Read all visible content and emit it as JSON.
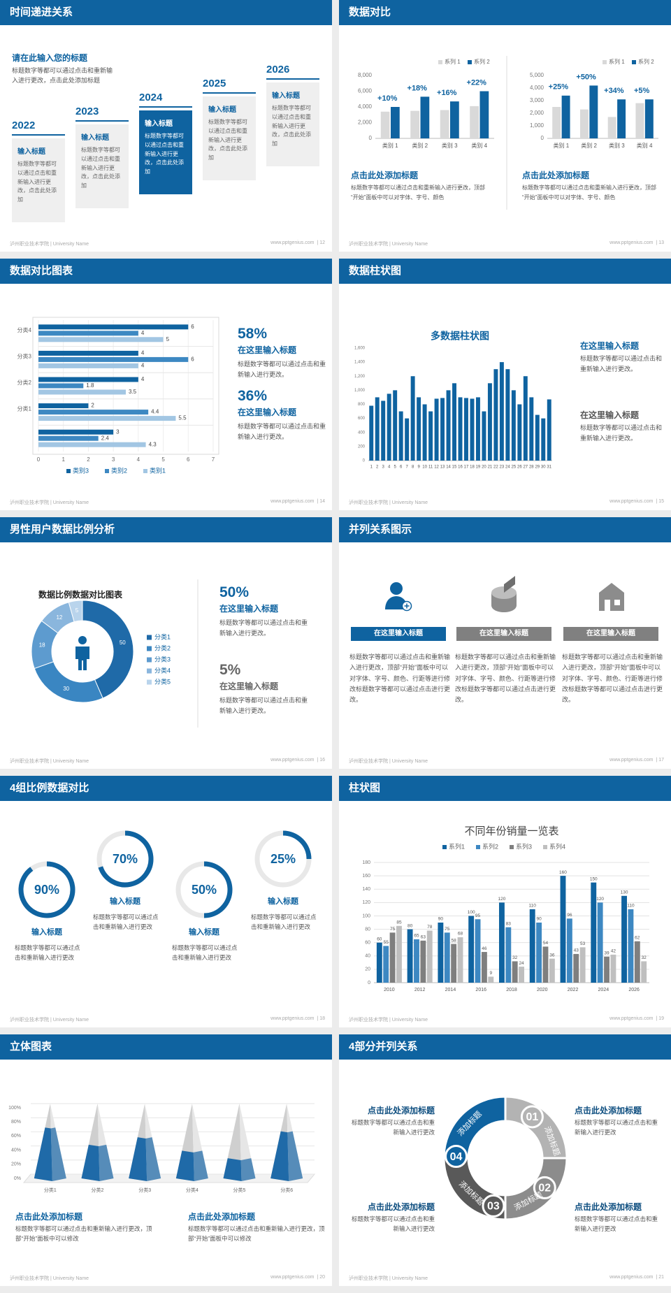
{
  "footer_left": "泸州职业技术学院 | University Name",
  "footer_url": "www.pptgenius.com",
  "slides": [
    {
      "title": "时间递进关系",
      "page": "| 12",
      "heading": "请在此输入您的标题",
      "text": "标题数字等都可以通过点击和重新输入进行更改，点击此处添加标题",
      "items": [
        {
          "year": "2022",
          "title": "输入标题",
          "text": "标题数字等都可以通过点击和重新输入进行更改，点击此处添加"
        },
        {
          "year": "2023",
          "title": "输入标题",
          "text": "标题数字等都可以通过点击和重新输入进行更改，点击此处添加"
        },
        {
          "year": "2024",
          "title": "输入标题",
          "text": "标题数字等都可以通过点击和重新输入进行更改，点击此处添加"
        },
        {
          "year": "2025",
          "title": "输入标题",
          "text": "标题数字等都可以通过点击和重新输入进行更改，点击此处添加"
        },
        {
          "year": "2026",
          "title": "输入标题",
          "text": "标题数字等都可以通过点击和重新输入进行更改，点击此处添加"
        }
      ]
    },
    {
      "title": "数据对比",
      "page": "| 13",
      "chart_data": [
        {
          "type": "bar",
          "categories": [
            "类别 1",
            "类别 2",
            "类别 3",
            "类别 4"
          ],
          "series": [
            {
              "name": "系列 1",
              "color": "#d9d9d9",
              "values": [
                3400,
                3500,
                3600,
                4100
              ]
            },
            {
              "name": "系列 2",
              "color": "#0f63a0",
              "values": [
                4000,
                5300,
                4700,
                6000
              ]
            }
          ],
          "annotations": [
            "+10%",
            "+18%",
            "+16%",
            "+22%"
          ],
          "ylim": [
            0,
            8000
          ],
          "yticks": [
            0,
            {
              "value": 2000,
              "label": "2,000"
            },
            {
              "value": 4000,
              "label": "4,000"
            },
            {
              "value": 6000,
              "label": "6,000"
            },
            {
              "value": 8000,
              "label": "8,000"
            }
          ]
        },
        {
          "type": "bar",
          "categories": [
            "类别 1",
            "类别 2",
            "类别 3",
            "类别 4"
          ],
          "series": [
            {
              "name": "系列 1",
              "color": "#d9d9d9",
              "values": [
                2500,
                2300,
                1700,
                2800
              ]
            },
            {
              "name": "系列 2",
              "color": "#0f63a0",
              "values": [
                3400,
                4200,
                3100,
                3100
              ]
            }
          ],
          "annotations": [
            "+25%",
            "+50%",
            "+34%",
            "+5%"
          ],
          "ylim": [
            0,
            5000
          ],
          "yticks": [
            0,
            {
              "value": 1000,
              "label": "1,000"
            },
            {
              "value": 2000,
              "label": "2,000"
            },
            {
              "value": 3000,
              "label": "3,000"
            },
            {
              "value": 4000,
              "label": "4,000"
            },
            {
              "value": 5000,
              "label": "5,000"
            }
          ]
        }
      ],
      "captions": [
        {
          "title": "点击此处添加标题",
          "text": "标题数字等都可以通过点击和重新输入进行更改，顶部“开始”面板中可以对字体、字号、颜色"
        },
        {
          "title": "点击此处添加标题",
          "text": "标题数字等都可以通过点击和重新输入进行更改，顶部“开始”面板中可以对字体、字号、颜色"
        }
      ]
    },
    {
      "title": "数据对比图表",
      "page": "| 14",
      "chart_data": {
        "type": "hbar",
        "categories": [
          null,
          "分类1",
          "分类2",
          "分类3",
          "分类4"
        ],
        "series": [
          {
            "name": "类别3",
            "color": "#0f63a0",
            "values": [
              3,
              2,
              4,
              4,
              6
            ]
          },
          {
            "name": "类别2",
            "color": "#3d88c2",
            "values": [
              2.4,
              4.4,
              1.8,
              6,
              4
            ]
          },
          {
            "name": "类别1",
            "color": "#a2c6e3",
            "values": [
              4.3,
              5.5,
              3.5,
              4,
              5
            ]
          }
        ],
        "xlim": [
          0,
          7
        ],
        "xticks": [
          0,
          1,
          2,
          3,
          4,
          5,
          6,
          7
        ],
        "grid": true
      },
      "stats": [
        {
          "value": "58%",
          "title": "在这里输入标题",
          "text": "标题数字等都可以通过点击和重新输入进行更改。"
        },
        {
          "value": "36%",
          "title": "在这里输入标题",
          "text": "标题数字等都可以通过点击和重新输入进行更改。"
        }
      ]
    },
    {
      "title": "数据柱状图",
      "page": "| 15",
      "chart_data": {
        "type": "bar",
        "title": "多数据柱状图",
        "color": "#0f63a0",
        "categories": [
          "1",
          "2",
          "3",
          "4",
          "5",
          "6",
          "7",
          "8",
          "9",
          "10",
          "11",
          "12",
          "13",
          "14",
          "15",
          "16",
          "17",
          "18",
          "19",
          "20",
          "21",
          "22",
          "23",
          "24",
          "25",
          "26",
          "27",
          "28",
          "29",
          "30",
          "31"
        ],
        "values": [
          780,
          900,
          850,
          950,
          1000,
          700,
          600,
          1200,
          900,
          800,
          700,
          880,
          890,
          1000,
          1100,
          900,
          890,
          880,
          900,
          700,
          1100,
          1300,
          1400,
          1300,
          1000,
          800,
          1200,
          900,
          650,
          600,
          870
        ],
        "ylim": [
          0,
          1600
        ],
        "yticks": [
          0,
          200,
          400,
          600,
          800,
          {
            "value": 1000,
            "label": "1,000"
          },
          {
            "value": 1200,
            "label": "1,200"
          },
          {
            "value": 1400,
            "label": "1,400"
          },
          {
            "value": 1600,
            "label": "1,600"
          }
        ]
      },
      "items": [
        {
          "title": "在这里输入标题",
          "text": "标题数字等都可以通过点击和重新输入进行更改。"
        },
        {
          "title": "在这里输入标题",
          "text": "标题数字等都可以通过点击和重新输入进行更改。"
        }
      ]
    },
    {
      "title": "男性用户数据比例分析",
      "page": "| 16",
      "chart_data": {
        "type": "donut",
        "title": "数据比例数据对比图表",
        "categories": [
          "分类1",
          "分类2",
          "分类3",
          "分类4",
          "分类5"
        ],
        "values": [
          50,
          30,
          18,
          12,
          5
        ],
        "colors": [
          "#1f6aa8",
          "#3a86c2",
          "#5d9bcf",
          "#8ab6dd",
          "#b9d4ec"
        ]
      },
      "stats": [
        {
          "value": "50%",
          "title": "在这里输入标题",
          "text": "标题数字等都可以通过点击和重新输入进行更改。"
        },
        {
          "value": "5%",
          "title": "在这里输入标题",
          "text": "标题数字等都可以通过点击和重新输入进行更改。"
        }
      ]
    },
    {
      "title": "并列关系图示",
      "page": "| 17",
      "columns": [
        {
          "label": "在这里输入标题",
          "text": "标题数字等都可以通过点击和重新输入进行更改，顶部“开始”面板中可以对字体、字号、颜色、行距等进行修改标题数字等都可以通过点击进行更改。"
        },
        {
          "label": "在这里输入标题",
          "text": "标题数字等都可以通过点击和重新输入进行更改，顶部“开始”面板中可以对字体、字号、颜色、行距等进行修改标题数字等都可以通过点击进行更改。"
        },
        {
          "label": "在这里输入标题",
          "text": "标题数字等都可以通过点击和重新输入进行更改，顶部“开始”面板中可以对字体、字号、颜色、行距等进行修改标题数字等都可以通过点击进行更改。"
        }
      ]
    },
    {
      "title": "4组比例数据对比",
      "page": "| 18",
      "chart_data": {
        "type": "ring",
        "values": [
          90,
          70,
          50,
          25
        ],
        "value_labels": [
          "90%",
          "70%",
          "50%",
          "25%"
        ],
        "ylim": [
          0,
          100
        ],
        "color": "#0f63a0"
      },
      "items": [
        {
          "title": "输入标题",
          "text": "标题数字等都可以通过点击和重新输入进行更改"
        },
        {
          "title": "输入标题",
          "text": "标题数字等都可以通过点击和重新输入进行更改"
        },
        {
          "title": "输入标题",
          "text": "标题数字等都可以通过点击和重新输入进行更改"
        },
        {
          "title": "输入标题",
          "text": "标题数字等都可以通过点击和重新输入进行更改"
        }
      ]
    },
    {
      "title": "柱状图",
      "page": "| 19",
      "chart_data": {
        "type": "bar",
        "title": "不同年份销量一览表",
        "categories": [
          "2010",
          "2012",
          "2014",
          "2016",
          "2018",
          "2020",
          "2022",
          "2024",
          "2026"
        ],
        "series": [
          {
            "name": "系列1",
            "color": "#0f63a0",
            "values": [
              60,
              80,
              90,
              100,
              120,
              110,
              160,
              150,
              130
            ]
          },
          {
            "name": "系列2",
            "color": "#3d88c2",
            "values": [
              55,
              65,
              75,
              95,
              83,
              90,
              96,
              120,
              110
            ]
          },
          {
            "name": "系列3",
            "color": "#7f7f7f",
            "values": [
              75,
              63,
              58,
              46,
              32,
              54,
              43,
              39,
              62
            ]
          },
          {
            "name": "系列4",
            "color": "#bfbfbf",
            "values": [
              85,
              78,
              68,
              9,
              24,
              36,
              53,
              42,
              32
            ]
          }
        ],
        "ylim": [
          0,
          180
        ],
        "yticks": [
          0,
          20,
          40,
          60,
          80,
          100,
          120,
          140,
          160,
          180
        ],
        "grid": true
      }
    },
    {
      "title": "立体图表",
      "page": "| 20",
      "chart_data": {
        "type": "pyramid",
        "categories": [
          "分类1",
          "分类2",
          "分类3",
          "分类4",
          "分类5",
          "分类6"
        ],
        "values": [
          68,
          45,
          55,
          37,
          27,
          63
        ],
        "color": "#1f6aa8",
        "ylim": [
          0,
          100
        ],
        "yticks": [
          {
            "value": 0,
            "label": "0%"
          },
          {
            "value": 20,
            "label": "20%"
          },
          {
            "value": 40,
            "label": "40%"
          },
          {
            "value": 60,
            "label": "60%"
          },
          {
            "value": 80,
            "label": "80%"
          },
          {
            "value": 100,
            "label": "100%"
          }
        ],
        "grid": true
      },
      "captions": [
        {
          "title": "点击此处添加标题",
          "text": "标题数字等都可以通过点击和重新输入进行更改，顶部“开始”面板中可以修改"
        },
        {
          "title": "点击此处添加标题",
          "text": "标题数字等都可以通过点击和重新输入进行更改，顶部“开始”面板中可以修改"
        }
      ]
    },
    {
      "title": "4部分并列关系",
      "page": "| 21",
      "segments": [
        {
          "number": "01",
          "label": "添加标题"
        },
        {
          "number": "02",
          "label": "添加标题"
        },
        {
          "number": "03",
          "label": "添加标题"
        },
        {
          "number": "04",
          "label": "添加标题"
        }
      ],
      "items": [
        {
          "title": "点击此处添加标题",
          "text": "标题数字等都可以通过点击和重新输入进行更改"
        },
        {
          "title": "点击此处添加标题",
          "text": "标题数字等都可以通过点击和重新输入进行更改"
        },
        {
          "title": "点击此处添加标题",
          "text": "标题数字等都可以通过点击和重新输入进行更改"
        },
        {
          "title": "点击此处添加标题",
          "text": "标题数字等都可以通过点击和重新输入进行更改"
        }
      ]
    }
  ]
}
